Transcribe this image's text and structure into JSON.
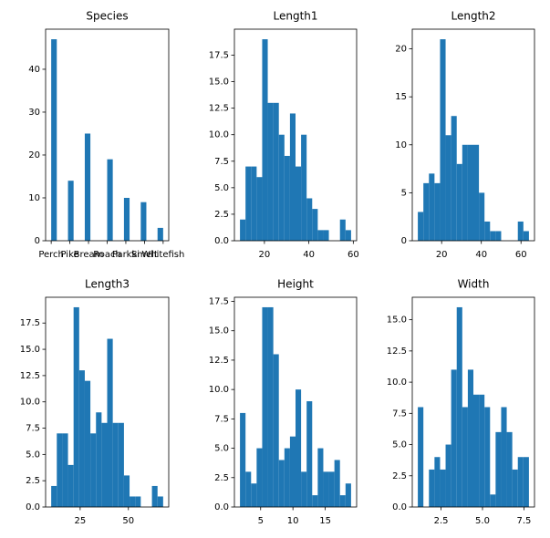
{
  "chart_data": [
    {
      "type": "histogram",
      "title": "Species",
      "color": "#1f77b4",
      "bins": [
        0,
        0.3,
        0.6,
        0.9,
        1.2,
        1.5,
        1.8,
        2.1,
        2.4,
        2.7,
        3,
        3.3,
        3.6,
        3.9,
        4.2,
        4.5,
        4.8,
        5.1,
        5.4,
        5.7,
        6
      ],
      "values": [
        47,
        0,
        0,
        14,
        0,
        0,
        25,
        0,
        0,
        0,
        19,
        0,
        0,
        10,
        0,
        0,
        9,
        0,
        0,
        3
      ],
      "xlim": [
        -0.3,
        6.3
      ],
      "ylim": [
        0,
        49.35
      ],
      "xticks": [
        {
          "value": 0,
          "label": "Perch"
        },
        {
          "value": 1,
          "label": "Pike"
        },
        {
          "value": 2,
          "label": "Bream"
        },
        {
          "value": 3,
          "label": "Roach"
        },
        {
          "value": 4,
          "label": "Parkki"
        },
        {
          "value": 5,
          "label": "Smelt"
        },
        {
          "value": 6,
          "label": "Whitefish"
        }
      ],
      "yticks": [
        0,
        10,
        20,
        30,
        40
      ]
    },
    {
      "type": "histogram",
      "title": "Length1",
      "color": "#1f77b4",
      "bins": [
        9,
        11.5,
        14,
        16.5,
        19,
        21.5,
        24,
        26.5,
        29,
        31.5,
        34,
        36.5,
        39,
        41.5,
        44,
        46.5,
        49,
        51.5,
        54,
        56.5,
        59
      ],
      "values": [
        2,
        7,
        7,
        6,
        19,
        13,
        13,
        10,
        8,
        12,
        7,
        10,
        4,
        3,
        1,
        1,
        0,
        0,
        2,
        1
      ],
      "xlim": [
        6.5,
        61.5
      ],
      "ylim": [
        0,
        19.95
      ],
      "xticks": [
        20,
        40,
        60
      ],
      "yticks": [
        {
          "value": 0,
          "label": "0.0"
        },
        2.5,
        {
          "value": 5,
          "label": "5.0"
        },
        7.5,
        {
          "value": 10,
          "label": "10.0"
        },
        12.5,
        {
          "value": 15,
          "label": "15.0"
        },
        17.5
      ]
    },
    {
      "type": "histogram",
      "title": "Length2",
      "color": "#1f77b4",
      "bins": [
        8,
        10.8,
        13.6,
        16.4,
        19.2,
        22,
        24.8,
        27.6,
        30.4,
        33.2,
        36,
        38.8,
        41.6,
        44.4,
        47.2,
        50,
        52.8,
        55.6,
        58.4,
        61.2,
        64
      ],
      "values": [
        3,
        6,
        7,
        6,
        21,
        11,
        13,
        8,
        10,
        10,
        10,
        5,
        2,
        1,
        1,
        0,
        0,
        0,
        2,
        1
      ],
      "xlim": [
        5.2,
        66.8
      ],
      "ylim": [
        0,
        22.05
      ],
      "xticks": [
        20,
        40,
        60
      ],
      "yticks": [
        0,
        5,
        10,
        15,
        20
      ]
    },
    {
      "type": "histogram",
      "title": "Length3",
      "color": "#1f77b4",
      "bins": [
        10,
        12.9,
        15.8,
        18.7,
        21.6,
        24.5,
        27.4,
        30.3,
        33.2,
        36.1,
        39,
        41.9,
        44.8,
        47.7,
        50.6,
        53.5,
        56.4,
        59.3,
        62.2,
        65.1,
        68
      ],
      "values": [
        2,
        7,
        7,
        4,
        19,
        13,
        12,
        7,
        9,
        8,
        16,
        8,
        8,
        3,
        1,
        1,
        0,
        0,
        2,
        1
      ],
      "xlim": [
        7.1,
        70.9
      ],
      "ylim": [
        0,
        19.95
      ],
      "xticks": [
        25,
        50
      ],
      "yticks": [
        {
          "value": 0,
          "label": "0.0"
        },
        2.5,
        {
          "value": 5,
          "label": "5.0"
        },
        7.5,
        {
          "value": 10,
          "label": "10.0"
        },
        12.5,
        {
          "value": 15,
          "label": "15.0"
        },
        17.5
      ]
    },
    {
      "type": "histogram",
      "title": "Height",
      "color": "#1f77b4",
      "bins": [
        1.8,
        2.66,
        3.52,
        4.38,
        5.24,
        6.1,
        6.96,
        7.82,
        8.68,
        9.54,
        10.4,
        11.26,
        12.12,
        12.98,
        13.84,
        14.7,
        15.56,
        16.42,
        17.28,
        18.14,
        19
      ],
      "values": [
        8,
        3,
        2,
        5,
        17,
        17,
        13,
        4,
        5,
        6,
        10,
        3,
        9,
        1,
        5,
        3,
        3,
        4,
        1,
        2
      ],
      "xlim": [
        0.94,
        19.86
      ],
      "ylim": [
        0,
        17.85
      ],
      "xticks": [
        5,
        10,
        15
      ],
      "yticks": [
        {
          "value": 0,
          "label": "0.0"
        },
        2.5,
        {
          "value": 5,
          "label": "5.0"
        },
        7.5,
        {
          "value": 10,
          "label": "10.0"
        },
        12.5,
        {
          "value": 15,
          "label": "15.0"
        },
        17.5
      ]
    },
    {
      "type": "histogram",
      "title": "Width",
      "color": "#1f77b4",
      "bins": [
        1.1,
        1.435,
        1.77,
        2.105,
        2.44,
        2.775,
        3.11,
        3.445,
        3.78,
        4.115,
        4.45,
        4.785,
        5.12,
        5.455,
        5.79,
        6.125,
        6.46,
        6.795,
        7.13,
        7.465,
        7.8
      ],
      "values": [
        8,
        0,
        3,
        4,
        3,
        5,
        11,
        16,
        8,
        11,
        9,
        9,
        8,
        1,
        6,
        8,
        6,
        3,
        4,
        4
      ],
      "xlim": [
        0.765,
        8.135
      ],
      "ylim": [
        0,
        16.8
      ],
      "xticks": [
        2.5,
        {
          "value": 5,
          "label": "5.0"
        },
        7.5
      ],
      "yticks": [
        {
          "value": 0,
          "label": "0.0"
        },
        2.5,
        {
          "value": 5,
          "label": "5.0"
        },
        7.5,
        {
          "value": 10,
          "label": "10.0"
        },
        12.5,
        {
          "value": 15,
          "label": "15.0"
        }
      ]
    }
  ]
}
